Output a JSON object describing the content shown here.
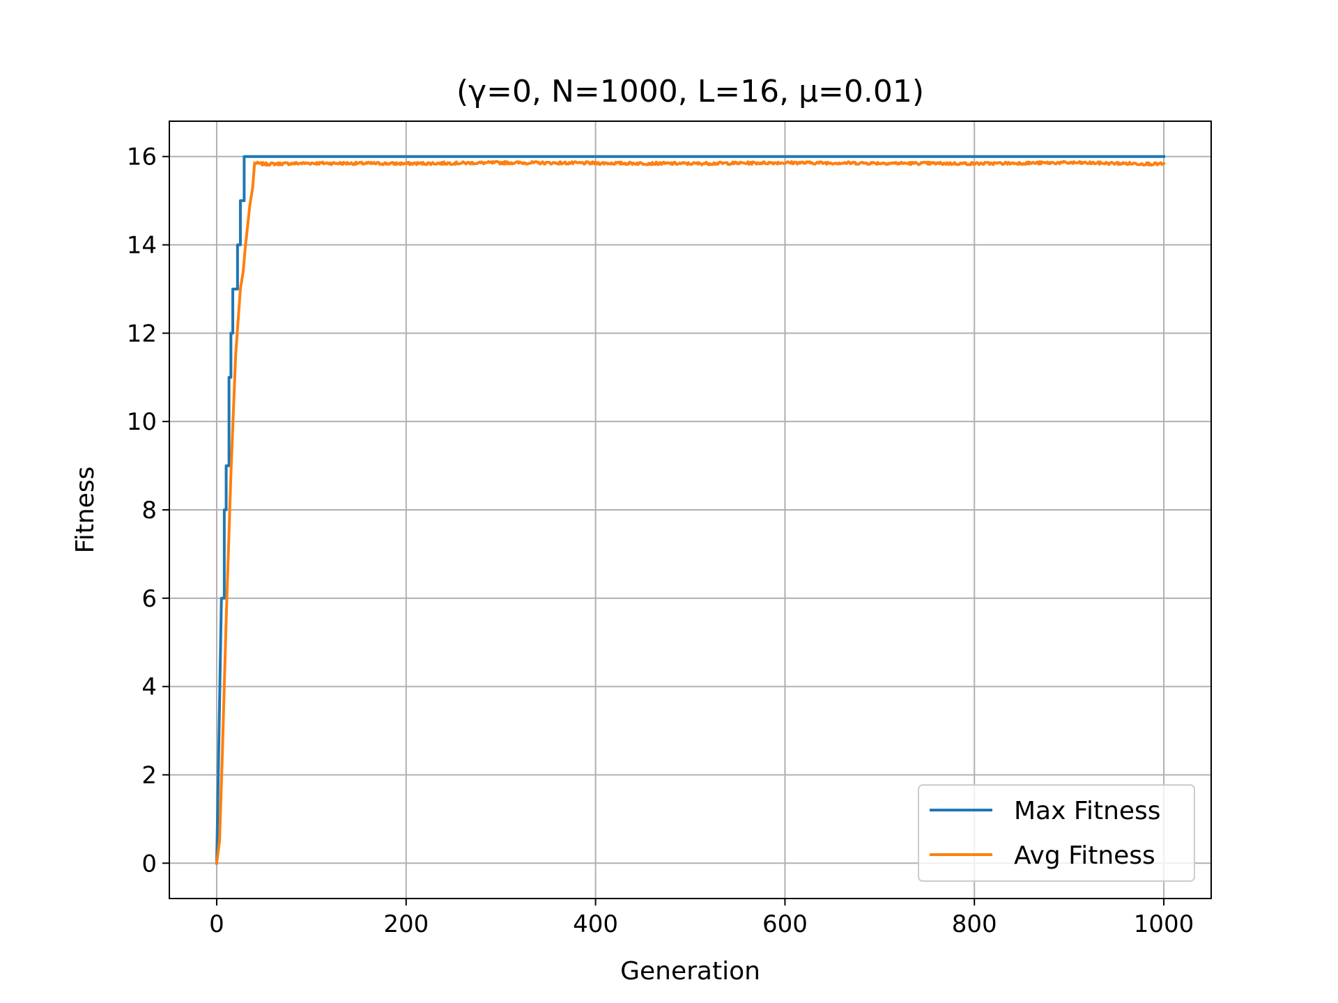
{
  "chart_data": {
    "type": "line",
    "title": "(γ=0, N=1000, L=16, μ=0.01)",
    "xlabel": "Generation",
    "ylabel": "Fitness",
    "xlim": [
      -50,
      1050
    ],
    "ylim": [
      -0.8,
      16.8
    ],
    "xticks": [
      0,
      200,
      400,
      600,
      800,
      1000
    ],
    "xtick_labels": [
      "0",
      "200",
      "400",
      "600",
      "800",
      "1000"
    ],
    "yticks": [
      0,
      2,
      4,
      6,
      8,
      10,
      12,
      14,
      16
    ],
    "ytick_labels": [
      "0",
      "2",
      "4",
      "6",
      "8",
      "10",
      "12",
      "14",
      "16"
    ],
    "grid": true,
    "legend_position": "lower-right",
    "series": [
      {
        "name": "Max Fitness",
        "color": "#1f77b4",
        "x": [
          0,
          5,
          5,
          8,
          8,
          10,
          10,
          13,
          13,
          15,
          15,
          17,
          17,
          19,
          19,
          22,
          22,
          25,
          25,
          26,
          26,
          29,
          29,
          30,
          30,
          1000
        ],
        "y": [
          0,
          6,
          6,
          6,
          8,
          8,
          9,
          9,
          11,
          11,
          12,
          12,
          13,
          13,
          13,
          13,
          14,
          14,
          15,
          15,
          15,
          15,
          16,
          16,
          16,
          16
        ]
      },
      {
        "name": "Avg Fitness",
        "color": "#ff7f0e",
        "x": [
          0,
          3,
          6,
          10,
          15,
          20,
          25,
          28,
          30,
          32,
          35,
          38,
          40,
          50,
          100,
          200,
          300,
          400,
          500,
          600,
          700,
          800,
          900,
          1000
        ],
        "y": [
          0,
          0.5,
          2.5,
          5.5,
          8.8,
          11.5,
          13.0,
          13.4,
          13.9,
          14.3,
          14.9,
          15.3,
          15.85,
          15.83,
          15.85,
          15.84,
          15.86,
          15.85,
          15.84,
          15.86,
          15.85,
          15.84,
          15.86,
          15.83
        ],
        "noise_amplitude": 0.03
      }
    ]
  }
}
